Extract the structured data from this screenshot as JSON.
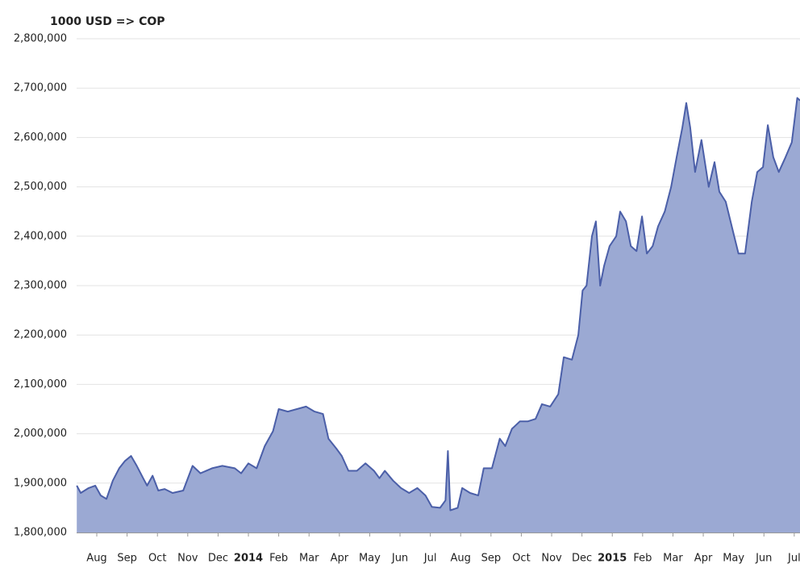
{
  "chart_data": {
    "type": "area",
    "title": "1000 USD => COP",
    "color": "#4b5fa8",
    "fill": "#9ba9d3",
    "grid": true,
    "x": [
      0.34,
      0.47,
      0.73,
      0.95,
      1.13,
      1.32,
      1.53,
      1.74,
      1.93,
      2.13,
      2.32,
      2.53,
      2.66,
      2.84,
      3.03,
      3.24,
      3.5,
      3.85,
      4.16,
      4.42,
      4.8,
      5.14,
      5.55,
      5.76,
      6.0,
      6.27,
      6.54,
      6.81,
      7.0,
      7.3,
      7.6,
      7.9,
      8.18,
      8.46,
      8.64,
      8.9,
      9.08,
      9.3,
      9.58,
      9.86,
      10.14,
      10.32,
      10.5,
      10.77,
      11.03,
      11.3,
      11.57,
      11.84,
      12.05,
      12.32,
      12.5,
      12.58,
      12.66,
      12.9,
      13.05,
      13.31,
      13.58,
      13.76,
      14.03,
      14.29,
      14.47,
      14.69,
      14.95,
      15.21,
      15.47,
      15.68,
      15.95,
      16.22,
      16.4,
      16.67,
      16.88,
      17.02,
      17.15,
      17.33,
      17.46,
      17.6,
      17.73,
      17.91,
      18.13,
      18.26,
      18.45,
      18.61,
      18.8,
      18.98,
      19.14,
      19.33,
      19.51,
      19.73,
      19.94,
      20.12,
      20.31,
      20.44,
      20.57,
      20.73,
      20.94,
      21.18,
      21.37,
      21.53,
      21.74,
      21.98,
      22.16,
      22.38,
      22.6,
      22.78,
      22.97,
      23.13,
      23.31,
      23.49,
      23.71,
      23.92,
      24.1,
      24.19
    ],
    "values": [
      1895000,
      1880000,
      1890000,
      1895000,
      1875000,
      1868000,
      1905000,
      1930000,
      1945000,
      1955000,
      1935000,
      1910000,
      1895000,
      1915000,
      1885000,
      1888000,
      1880000,
      1885000,
      1935000,
      1920000,
      1930000,
      1935000,
      1930000,
      1920000,
      1940000,
      1930000,
      1975000,
      2005000,
      2050000,
      2045000,
      2050000,
      2055000,
      2045000,
      2040000,
      1990000,
      1970000,
      1955000,
      1925000,
      1925000,
      1940000,
      1925000,
      1910000,
      1925000,
      1905000,
      1890000,
      1880000,
      1890000,
      1875000,
      1852000,
      1850000,
      1865000,
      1965000,
      1845000,
      1850000,
      1890000,
      1880000,
      1875000,
      1930000,
      1930000,
      1990000,
      1975000,
      2010000,
      2025000,
      2025000,
      2030000,
      2060000,
      2055000,
      2080000,
      2155000,
      2150000,
      2200000,
      2290000,
      2300000,
      2400000,
      2430000,
      2300000,
      2340000,
      2380000,
      2400000,
      2450000,
      2430000,
      2380000,
      2370000,
      2440000,
      2365000,
      2380000,
      2420000,
      2450000,
      2500000,
      2560000,
      2620000,
      2670000,
      2620000,
      2530000,
      2595000,
      2500000,
      2550000,
      2490000,
      2470000,
      2410000,
      2365000,
      2365000,
      2470000,
      2530000,
      2540000,
      2625000,
      2560000,
      2530000,
      2560000,
      2590000,
      2680000,
      2675000
    ],
    "xlim": [
      0.335,
      24.19
    ],
    "xticks": [
      {
        "value": 1,
        "label": "Aug"
      },
      {
        "value": 2,
        "label": "Sep"
      },
      {
        "value": 3,
        "label": "Oct"
      },
      {
        "value": 4,
        "label": "Nov"
      },
      {
        "value": 5,
        "label": "Dec"
      },
      {
        "value": 6,
        "label": "2014"
      },
      {
        "value": 7,
        "label": "Feb"
      },
      {
        "value": 8,
        "label": "Mar"
      },
      {
        "value": 9,
        "label": "Apr"
      },
      {
        "value": 10,
        "label": "May"
      },
      {
        "value": 11,
        "label": "Jun"
      },
      {
        "value": 12,
        "label": "Jul"
      },
      {
        "value": 13,
        "label": "Aug"
      },
      {
        "value": 14,
        "label": "Sep"
      },
      {
        "value": 15,
        "label": "Oct"
      },
      {
        "value": 16,
        "label": "Nov"
      },
      {
        "value": 17,
        "label": "Dec"
      },
      {
        "value": 18,
        "label": "2015"
      },
      {
        "value": 19,
        "label": "Feb"
      },
      {
        "value": 20,
        "label": "Mar"
      },
      {
        "value": 21,
        "label": "Apr"
      },
      {
        "value": 22,
        "label": "May"
      },
      {
        "value": 23,
        "label": "Jun"
      },
      {
        "value": 24,
        "label": "Jul"
      }
    ],
    "ylim": [
      1800000,
      2800000
    ],
    "yticks": [
      {
        "value": 1800000,
        "label": "1,800,000"
      },
      {
        "value": 1900000,
        "label": "1,900,000"
      },
      {
        "value": 2000000,
        "label": "2,000,000"
      },
      {
        "value": 2100000,
        "label": "2,100,000"
      },
      {
        "value": 2200000,
        "label": "2,200,000"
      },
      {
        "value": 2300000,
        "label": "2,300,000"
      },
      {
        "value": 2400000,
        "label": "2,400,000"
      },
      {
        "value": 2500000,
        "label": "2,500,000"
      },
      {
        "value": 2600000,
        "label": "2,600,000"
      },
      {
        "value": 2700000,
        "label": "2,700,000"
      },
      {
        "value": 2800000,
        "label": "2,800,000"
      }
    ]
  }
}
